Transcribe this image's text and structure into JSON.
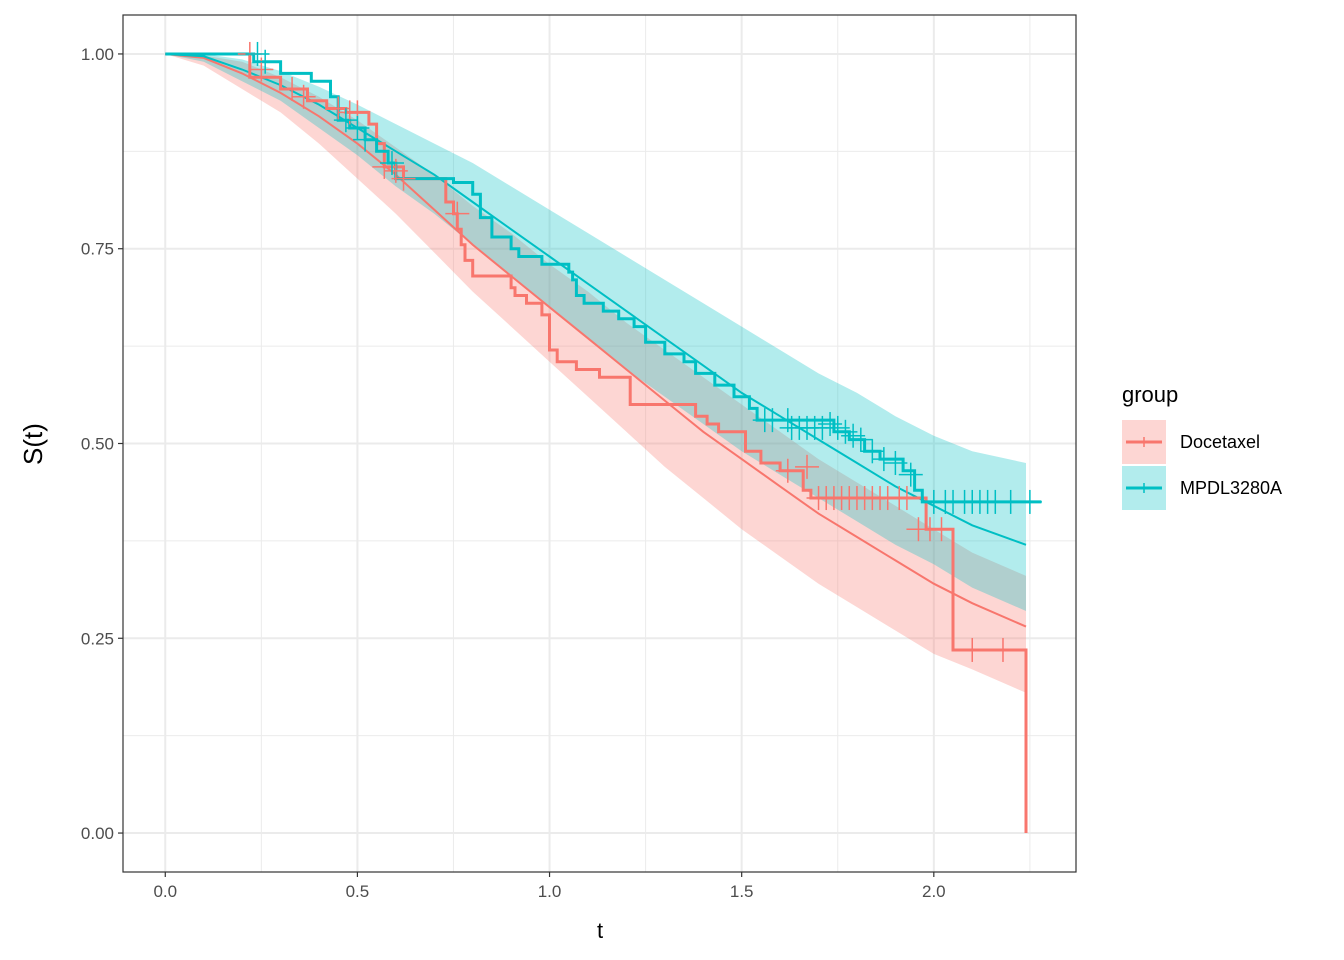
{
  "chart_data": {
    "type": "line",
    "xlabel": "t",
    "ylabel": "S(t)",
    "xlim": [
      -0.11,
      2.37
    ],
    "ylim": [
      -0.05,
      1.05
    ],
    "x_ticks": [
      0.0,
      0.5,
      1.0,
      1.5,
      2.0
    ],
    "x_tick_labels": [
      "0.0",
      "0.5",
      "1.0",
      "1.5",
      "2.0"
    ],
    "y_ticks": [
      0.0,
      0.25,
      0.5,
      0.75,
      1.0
    ],
    "y_tick_labels": [
      "0.00",
      "0.25",
      "0.50",
      "0.75",
      "1.00"
    ],
    "grid": true,
    "legend": {
      "title": "group",
      "position": "right"
    },
    "series": [
      {
        "name": "Docetaxel",
        "color": "#F8766D",
        "km_steps": [
          [
            0,
            1.0
          ],
          [
            0.22,
            1.0
          ],
          [
            0.22,
            0.97
          ],
          [
            0.3,
            0.97
          ],
          [
            0.3,
            0.955
          ],
          [
            0.37,
            0.955
          ],
          [
            0.37,
            0.94
          ],
          [
            0.42,
            0.94
          ],
          [
            0.42,
            0.93
          ],
          [
            0.47,
            0.93
          ],
          [
            0.47,
            0.925
          ],
          [
            0.53,
            0.925
          ],
          [
            0.53,
            0.91
          ],
          [
            0.55,
            0.91
          ],
          [
            0.55,
            0.885
          ],
          [
            0.57,
            0.885
          ],
          [
            0.57,
            0.855
          ],
          [
            0.62,
            0.855
          ],
          [
            0.62,
            0.84
          ],
          [
            0.73,
            0.84
          ],
          [
            0.73,
            0.81
          ],
          [
            0.75,
            0.81
          ],
          [
            0.75,
            0.795
          ],
          [
            0.76,
            0.795
          ],
          [
            0.76,
            0.775
          ],
          [
            0.77,
            0.775
          ],
          [
            0.77,
            0.755
          ],
          [
            0.78,
            0.755
          ],
          [
            0.78,
            0.735
          ],
          [
            0.8,
            0.735
          ],
          [
            0.8,
            0.715
          ],
          [
            0.9,
            0.715
          ],
          [
            0.9,
            0.7
          ],
          [
            0.91,
            0.7
          ],
          [
            0.91,
            0.69
          ],
          [
            0.94,
            0.69
          ],
          [
            0.94,
            0.68
          ],
          [
            0.98,
            0.68
          ],
          [
            0.98,
            0.665
          ],
          [
            1.0,
            0.665
          ],
          [
            1.0,
            0.62
          ],
          [
            1.02,
            0.62
          ],
          [
            1.02,
            0.605
          ],
          [
            1.07,
            0.605
          ],
          [
            1.07,
            0.595
          ],
          [
            1.13,
            0.595
          ],
          [
            1.13,
            0.585
          ],
          [
            1.21,
            0.585
          ],
          [
            1.21,
            0.55
          ],
          [
            1.38,
            0.55
          ],
          [
            1.38,
            0.535
          ],
          [
            1.41,
            0.535
          ],
          [
            1.41,
            0.525
          ],
          [
            1.44,
            0.525
          ],
          [
            1.44,
            0.515
          ],
          [
            1.51,
            0.515
          ],
          [
            1.51,
            0.49
          ],
          [
            1.55,
            0.49
          ],
          [
            1.55,
            0.475
          ],
          [
            1.6,
            0.475
          ],
          [
            1.6,
            0.465
          ],
          [
            1.66,
            0.465
          ],
          [
            1.66,
            0.44
          ],
          [
            1.68,
            0.44
          ],
          [
            1.68,
            0.43
          ],
          [
            1.98,
            0.43
          ],
          [
            1.98,
            0.39
          ],
          [
            2.05,
            0.39
          ],
          [
            2.05,
            0.235
          ],
          [
            2.24,
            0.235
          ],
          [
            2.24,
            0.0
          ]
        ],
        "censor_points": [
          [
            0.22,
            1.0
          ],
          [
            0.25,
            0.98
          ],
          [
            0.33,
            0.955
          ],
          [
            0.36,
            0.945
          ],
          [
            0.45,
            0.93
          ],
          [
            0.48,
            0.925
          ],
          [
            0.5,
            0.925
          ],
          [
            0.57,
            0.855
          ],
          [
            0.6,
            0.85
          ],
          [
            0.62,
            0.84
          ],
          [
            0.76,
            0.795
          ],
          [
            1.62,
            0.465
          ],
          [
            1.67,
            0.47
          ],
          [
            1.7,
            0.43
          ],
          [
            1.72,
            0.43
          ],
          [
            1.74,
            0.43
          ],
          [
            1.76,
            0.43
          ],
          [
            1.78,
            0.43
          ],
          [
            1.8,
            0.43
          ],
          [
            1.82,
            0.43
          ],
          [
            1.84,
            0.43
          ],
          [
            1.86,
            0.43
          ],
          [
            1.88,
            0.43
          ],
          [
            1.91,
            0.43
          ],
          [
            1.93,
            0.43
          ],
          [
            1.96,
            0.39
          ],
          [
            1.99,
            0.39
          ],
          [
            2.02,
            0.39
          ],
          [
            2.1,
            0.235
          ],
          [
            2.18,
            0.235
          ]
        ],
        "fit_x": [
          0.0,
          0.1,
          0.2,
          0.3,
          0.4,
          0.5,
          0.6,
          0.7,
          0.8,
          0.9,
          1.0,
          1.1,
          1.2,
          1.3,
          1.4,
          1.5,
          1.6,
          1.7,
          1.8,
          1.9,
          2.0,
          2.1,
          2.24
        ],
        "fit": [
          1.0,
          0.995,
          0.975,
          0.95,
          0.92,
          0.885,
          0.845,
          0.8,
          0.755,
          0.715,
          0.675,
          0.635,
          0.595,
          0.555,
          0.515,
          0.48,
          0.445,
          0.41,
          0.38,
          0.35,
          0.32,
          0.295,
          0.265
        ],
        "ci_lower": [
          1.0,
          0.985,
          0.955,
          0.925,
          0.885,
          0.84,
          0.795,
          0.745,
          0.695,
          0.65,
          0.605,
          0.56,
          0.515,
          0.47,
          0.43,
          0.39,
          0.355,
          0.32,
          0.29,
          0.26,
          0.23,
          0.21,
          0.18
        ],
        "ci_upper": [
          1.0,
          0.998,
          0.99,
          0.97,
          0.945,
          0.915,
          0.88,
          0.845,
          0.805,
          0.77,
          0.73,
          0.695,
          0.655,
          0.62,
          0.585,
          0.55,
          0.515,
          0.48,
          0.45,
          0.42,
          0.39,
          0.36,
          0.33
        ]
      },
      {
        "name": "MPDL3280A",
        "color": "#00BFC4",
        "km_steps": [
          [
            0,
            1.0
          ],
          [
            0.23,
            1.0
          ],
          [
            0.23,
            0.99
          ],
          [
            0.3,
            0.99
          ],
          [
            0.3,
            0.975
          ],
          [
            0.38,
            0.975
          ],
          [
            0.38,
            0.965
          ],
          [
            0.43,
            0.965
          ],
          [
            0.43,
            0.945
          ],
          [
            0.45,
            0.945
          ],
          [
            0.45,
            0.915
          ],
          [
            0.48,
            0.915
          ],
          [
            0.48,
            0.905
          ],
          [
            0.52,
            0.905
          ],
          [
            0.52,
            0.89
          ],
          [
            0.55,
            0.89
          ],
          [
            0.55,
            0.875
          ],
          [
            0.58,
            0.875
          ],
          [
            0.58,
            0.86
          ],
          [
            0.6,
            0.86
          ],
          [
            0.6,
            0.84
          ],
          [
            0.75,
            0.84
          ],
          [
            0.75,
            0.835
          ],
          [
            0.8,
            0.835
          ],
          [
            0.8,
            0.82
          ],
          [
            0.82,
            0.82
          ],
          [
            0.82,
            0.79
          ],
          [
            0.85,
            0.79
          ],
          [
            0.85,
            0.765
          ],
          [
            0.9,
            0.765
          ],
          [
            0.9,
            0.75
          ],
          [
            0.92,
            0.75
          ],
          [
            0.92,
            0.74
          ],
          [
            0.98,
            0.74
          ],
          [
            0.98,
            0.73
          ],
          [
            1.05,
            0.73
          ],
          [
            1.05,
            0.72
          ],
          [
            1.06,
            0.72
          ],
          [
            1.06,
            0.71
          ],
          [
            1.07,
            0.71
          ],
          [
            1.07,
            0.69
          ],
          [
            1.09,
            0.69
          ],
          [
            1.09,
            0.68
          ],
          [
            1.14,
            0.68
          ],
          [
            1.14,
            0.67
          ],
          [
            1.18,
            0.67
          ],
          [
            1.18,
            0.66
          ],
          [
            1.22,
            0.66
          ],
          [
            1.22,
            0.65
          ],
          [
            1.25,
            0.65
          ],
          [
            1.25,
            0.63
          ],
          [
            1.3,
            0.63
          ],
          [
            1.3,
            0.615
          ],
          [
            1.35,
            0.615
          ],
          [
            1.35,
            0.605
          ],
          [
            1.38,
            0.605
          ],
          [
            1.38,
            0.59
          ],
          [
            1.43,
            0.59
          ],
          [
            1.43,
            0.575
          ],
          [
            1.48,
            0.575
          ],
          [
            1.48,
            0.56
          ],
          [
            1.52,
            0.56
          ],
          [
            1.52,
            0.545
          ],
          [
            1.54,
            0.545
          ],
          [
            1.54,
            0.53
          ],
          [
            1.74,
            0.53
          ],
          [
            1.74,
            0.515
          ],
          [
            1.78,
            0.515
          ],
          [
            1.78,
            0.505
          ],
          [
            1.82,
            0.505
          ],
          [
            1.82,
            0.49
          ],
          [
            1.86,
            0.49
          ],
          [
            1.86,
            0.48
          ],
          [
            1.92,
            0.48
          ],
          [
            1.92,
            0.465
          ],
          [
            1.95,
            0.465
          ],
          [
            1.95,
            0.44
          ],
          [
            1.97,
            0.44
          ],
          [
            1.97,
            0.425
          ],
          [
            2.28,
            0.425
          ]
        ],
        "censor_points": [
          [
            0.24,
            1.0
          ],
          [
            0.26,
            0.99
          ],
          [
            0.47,
            0.915
          ],
          [
            0.5,
            0.905
          ],
          [
            0.52,
            0.89
          ],
          [
            0.59,
            0.86
          ],
          [
            1.56,
            0.53
          ],
          [
            1.58,
            0.53
          ],
          [
            1.62,
            0.53
          ],
          [
            1.63,
            0.52
          ],
          [
            1.65,
            0.52
          ],
          [
            1.67,
            0.52
          ],
          [
            1.69,
            0.52
          ],
          [
            1.71,
            0.52
          ],
          [
            1.73,
            0.525
          ],
          [
            1.75,
            0.52
          ],
          [
            1.77,
            0.515
          ],
          [
            1.79,
            0.51
          ],
          [
            1.81,
            0.505
          ],
          [
            1.84,
            0.49
          ],
          [
            1.87,
            0.48
          ],
          [
            1.9,
            0.475
          ],
          [
            1.94,
            0.46
          ],
          [
            2.0,
            0.425
          ],
          [
            2.03,
            0.425
          ],
          [
            2.05,
            0.425
          ],
          [
            2.08,
            0.425
          ],
          [
            2.1,
            0.425
          ],
          [
            2.12,
            0.425
          ],
          [
            2.14,
            0.425
          ],
          [
            2.16,
            0.425
          ],
          [
            2.2,
            0.425
          ],
          [
            2.25,
            0.425
          ]
        ],
        "fit_x": [
          0.0,
          0.1,
          0.2,
          0.3,
          0.4,
          0.5,
          0.6,
          0.7,
          0.8,
          0.9,
          1.0,
          1.1,
          1.2,
          1.3,
          1.4,
          1.5,
          1.6,
          1.7,
          1.8,
          1.9,
          2.0,
          2.1,
          2.24
        ],
        "fit": [
          1.0,
          0.997,
          0.98,
          0.96,
          0.935,
          0.905,
          0.875,
          0.845,
          0.81,
          0.775,
          0.74,
          0.705,
          0.67,
          0.635,
          0.6,
          0.565,
          0.535,
          0.505,
          0.475,
          0.445,
          0.42,
          0.395,
          0.37
        ],
        "ci_lower": [
          1.0,
          0.99,
          0.965,
          0.94,
          0.905,
          0.87,
          0.83,
          0.795,
          0.755,
          0.715,
          0.675,
          0.635,
          0.595,
          0.56,
          0.525,
          0.49,
          0.46,
          0.43,
          0.4,
          0.37,
          0.345,
          0.315,
          0.285
        ],
        "ci_upper": [
          1.0,
          1.0,
          0.993,
          0.978,
          0.958,
          0.935,
          0.91,
          0.885,
          0.86,
          0.83,
          0.8,
          0.77,
          0.74,
          0.71,
          0.68,
          0.65,
          0.62,
          0.59,
          0.565,
          0.535,
          0.51,
          0.49,
          0.475
        ]
      }
    ]
  }
}
